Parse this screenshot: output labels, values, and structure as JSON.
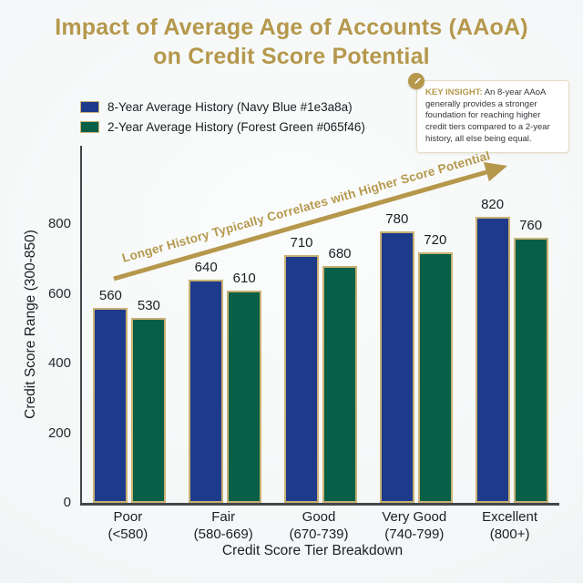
{
  "title": {
    "line1": "Impact of Average Age of Accounts (AAoA)",
    "line2": "on Credit Score Potential"
  },
  "legend": {
    "items": [
      {
        "label": "8-Year Average History (Navy Blue #1e3a8a)",
        "color": "#1e3a8a"
      },
      {
        "label": "2-Year Average History (Forest Green #065f46)",
        "color": "#065f46"
      }
    ]
  },
  "key_insight": {
    "label": "KEY INSIGHT:",
    "text": " An 8-year AAoA generally provides a stronger foundation for reaching higher credit tiers compared to a 2-year history, all else being equal.",
    "icon": "pen-badge-icon"
  },
  "annotation": {
    "text": "Longer History Typically Correlates with Higher Score Potential"
  },
  "colors": {
    "gold": "#b5984c",
    "bar_border": "#c9b174",
    "navy": "#1e3a8a",
    "green": "#065f46",
    "axis": "#42474c",
    "text_dark": "#1c1f23"
  },
  "chart_data": {
    "type": "bar",
    "title": "Impact of Average Age of Accounts (AAoA) on Credit Score Potential",
    "xlabel": "Credit Score Tier Breakdown",
    "ylabel": "Credit Score Range (300-850)",
    "categories": [
      "Poor\n(<580)",
      "Fair\n(580-669)",
      "Good\n(670-739)",
      "Very Good\n(740-799)",
      "Excellent\n(800+)"
    ],
    "series": [
      {
        "name": "8-Year Average History",
        "color": "#1e3a8a",
        "values": [
          560,
          640,
          710,
          780,
          820
        ]
      },
      {
        "name": "2-Year Average History",
        "color": "#065f46",
        "values": [
          530,
          610,
          680,
          720,
          760
        ]
      }
    ],
    "yticks": [
      0,
      200,
      400,
      600,
      800
    ],
    "ylim": [
      0,
      1025
    ],
    "grid": false,
    "legend_position": "upper left",
    "annotation": "Longer History Typically Correlates with Higher Score Potential"
  }
}
